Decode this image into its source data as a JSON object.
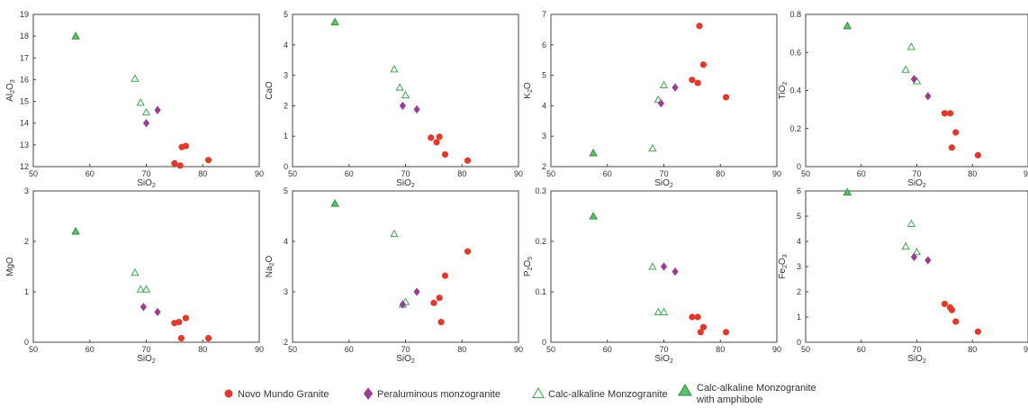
{
  "legend": {
    "items": [
      {
        "key": "nmg",
        "label": "Novo Mundo Granite",
        "label2": ""
      },
      {
        "key": "pmz",
        "label": "Peraluminous monzogranite",
        "label2": ""
      },
      {
        "key": "cam",
        "label": "Calc-alkaline Monzogranite",
        "label2": ""
      },
      {
        "key": "cama",
        "label": "Calc-alkaline Monzogranite",
        "label2": "with amphibole"
      }
    ]
  },
  "colors": {
    "nmg": "#e03a2c",
    "pmz": "#9b3c93",
    "cam_stroke": "#3fa84e",
    "cama_fill": "#5cc16a",
    "cama_stroke": "#2e8a3c",
    "axis": "#444444"
  },
  "chart_data": [
    {
      "type": "scatter",
      "xlabel": "SiO",
      "xsub": "2",
      "ylabel": "Al",
      "ysub": "2",
      "ylabel2": "O",
      "ysub2": "3",
      "xlim": [
        50,
        90
      ],
      "ylim": [
        12,
        19
      ],
      "xticks": [
        50,
        60,
        70,
        80,
        90
      ],
      "yticks": [
        12,
        13,
        14,
        15,
        16,
        17,
        18,
        19
      ],
      "series": [
        {
          "group": "nmg",
          "x": [
            75,
            76,
            76.3,
            77,
            81
          ],
          "y": [
            12.15,
            12.05,
            12.9,
            12.95,
            12.3
          ]
        },
        {
          "group": "pmz",
          "x": [
            70,
            72
          ],
          "y": [
            14.0,
            14.6
          ]
        },
        {
          "group": "cam",
          "x": [
            68,
            69,
            70
          ],
          "y": [
            16.05,
            14.95,
            14.5
          ]
        },
        {
          "group": "cama",
          "x": [
            57.5
          ],
          "y": [
            18.0
          ]
        }
      ]
    },
    {
      "type": "scatter",
      "xlabel": "SiO",
      "xsub": "2",
      "ylabel": "CaO",
      "ysub": "",
      "ylabel2": "",
      "ysub2": "",
      "xlim": [
        50,
        90
      ],
      "ylim": [
        0,
        5
      ],
      "xticks": [
        50,
        60,
        70,
        80,
        90
      ],
      "yticks": [
        0,
        1,
        2,
        3,
        4,
        5
      ],
      "series": [
        {
          "group": "nmg",
          "x": [
            74.5,
            75.5,
            76,
            77,
            81
          ],
          "y": [
            0.95,
            0.8,
            0.98,
            0.4,
            0.2
          ]
        },
        {
          "group": "pmz",
          "x": [
            69.5,
            72
          ],
          "y": [
            2.0,
            1.88
          ]
        },
        {
          "group": "cam",
          "x": [
            68,
            69,
            70
          ],
          "y": [
            3.2,
            2.6,
            2.35
          ]
        },
        {
          "group": "cama",
          "x": [
            57.5
          ],
          "y": [
            4.75
          ]
        }
      ]
    },
    {
      "type": "scatter",
      "xlabel": "SiO",
      "xsub": "2",
      "ylabel": "K",
      "ysub": "2",
      "ylabel2": "O",
      "ysub2": "",
      "xlim": [
        50,
        90
      ],
      "ylim": [
        2,
        7
      ],
      "xticks": [
        50,
        60,
        70,
        80,
        90
      ],
      "yticks": [
        2,
        3,
        4,
        5,
        6,
        7
      ],
      "series": [
        {
          "group": "nmg",
          "x": [
            75,
            76,
            76.3,
            77,
            81
          ],
          "y": [
            4.85,
            4.75,
            6.62,
            5.35,
            4.28
          ]
        },
        {
          "group": "pmz",
          "x": [
            69.5,
            72
          ],
          "y": [
            4.08,
            4.6
          ]
        },
        {
          "group": "cam",
          "x": [
            68,
            69,
            70
          ],
          "y": [
            2.6,
            4.2,
            4.68
          ]
        },
        {
          "group": "cama",
          "x": [
            57.5
          ],
          "y": [
            2.45
          ]
        }
      ]
    },
    {
      "type": "scatter",
      "xlabel": "SiO",
      "xsub": "2",
      "ylabel": "TiO",
      "ysub": "2",
      "ylabel2": "",
      "ysub2": "",
      "xlim": [
        50,
        90
      ],
      "ylim": [
        0,
        0.8
      ],
      "xticks": [
        50,
        60,
        70,
        80,
        90
      ],
      "yticks": [
        0,
        0.2,
        0.4,
        0.6,
        0.8
      ],
      "series": [
        {
          "group": "nmg",
          "x": [
            75,
            76,
            76.3,
            77,
            81
          ],
          "y": [
            0.28,
            0.28,
            0.1,
            0.18,
            0.06
          ]
        },
        {
          "group": "pmz",
          "x": [
            69.5,
            72
          ],
          "y": [
            0.46,
            0.37
          ]
        },
        {
          "group": "cam",
          "x": [
            68,
            69,
            70
          ],
          "y": [
            0.51,
            0.63,
            0.45
          ]
        },
        {
          "group": "cama",
          "x": [
            57.5
          ],
          "y": [
            0.74
          ]
        }
      ]
    },
    {
      "type": "scatter",
      "xlabel": "SiO",
      "xsub": "2",
      "ylabel": "MgO",
      "ysub": "",
      "ylabel2": "",
      "ysub2": "",
      "xlim": [
        50,
        90
      ],
      "ylim": [
        0,
        3
      ],
      "xticks": [
        50,
        60,
        70,
        80,
        90
      ],
      "yticks": [
        0,
        1,
        2,
        3
      ],
      "series": [
        {
          "group": "nmg",
          "x": [
            75,
            75.8,
            76.2,
            77,
            81
          ],
          "y": [
            0.38,
            0.4,
            0.08,
            0.48,
            0.08
          ]
        },
        {
          "group": "pmz",
          "x": [
            69.5,
            72
          ],
          "y": [
            0.7,
            0.6
          ]
        },
        {
          "group": "cam",
          "x": [
            68,
            69,
            70
          ],
          "y": [
            1.38,
            1.05,
            1.05
          ]
        },
        {
          "group": "cama",
          "x": [
            57.5
          ],
          "y": [
            2.2
          ]
        }
      ]
    },
    {
      "type": "scatter",
      "xlabel": "SiO",
      "xsub": "2",
      "ylabel": "Na",
      "ysub": "2",
      "ylabel2": "O",
      "ysub2": "",
      "xlim": [
        50,
        90
      ],
      "ylim": [
        2,
        5
      ],
      "xticks": [
        50,
        60,
        70,
        80,
        90
      ],
      "yticks": [
        2,
        3,
        4,
        5
      ],
      "series": [
        {
          "group": "nmg",
          "x": [
            75,
            76,
            76.3,
            77,
            81
          ],
          "y": [
            2.78,
            2.88,
            2.4,
            3.32,
            3.8
          ]
        },
        {
          "group": "pmz",
          "x": [
            69.5,
            72
          ],
          "y": [
            2.75,
            3.0
          ]
        },
        {
          "group": "cam",
          "x": [
            68,
            69.5,
            70
          ],
          "y": [
            4.15,
            2.75,
            2.8
          ]
        },
        {
          "group": "cama",
          "x": [
            57.5
          ],
          "y": [
            4.75
          ]
        }
      ]
    },
    {
      "type": "scatter",
      "xlabel": "SiO",
      "xsub": "2",
      "ylabel": "P",
      "ysub": "2",
      "ylabel2": "O",
      "ysub2": "5",
      "xlim": [
        50,
        90
      ],
      "ylim": [
        0,
        0.3
      ],
      "xticks": [
        50,
        60,
        70,
        80,
        90
      ],
      "yticks": [
        0,
        0.1,
        0.2,
        0.3
      ],
      "series": [
        {
          "group": "nmg",
          "x": [
            75,
            76,
            76.5,
            77,
            81
          ],
          "y": [
            0.05,
            0.05,
            0.02,
            0.03,
            0.02
          ]
        },
        {
          "group": "pmz",
          "x": [
            70,
            72
          ],
          "y": [
            0.15,
            0.14
          ]
        },
        {
          "group": "cam",
          "x": [
            68,
            69,
            70
          ],
          "y": [
            0.15,
            0.06,
            0.06
          ]
        },
        {
          "group": "cama",
          "x": [
            57.5
          ],
          "y": [
            0.25
          ]
        }
      ]
    },
    {
      "type": "scatter",
      "xlabel": "SiO",
      "xsub": "2",
      "ylabel": "Fe",
      "ysub": "2",
      "ylabel2": "O",
      "ysub2": "3",
      "xlim": [
        50,
        90
      ],
      "ylim": [
        0,
        6
      ],
      "xticks": [
        50,
        60,
        70,
        80,
        90
      ],
      "yticks": [
        0,
        1,
        2,
        3,
        4,
        5,
        6
      ],
      "series": [
        {
          "group": "nmg",
          "x": [
            75,
            76,
            76.3,
            77,
            81
          ],
          "y": [
            1.52,
            1.38,
            1.28,
            0.82,
            0.42
          ]
        },
        {
          "group": "pmz",
          "x": [
            69.5,
            72
          ],
          "y": [
            3.38,
            3.25
          ]
        },
        {
          "group": "cam",
          "x": [
            68,
            69,
            70
          ],
          "y": [
            3.8,
            4.7,
            3.58
          ]
        },
        {
          "group": "cama",
          "x": [
            57.5
          ],
          "y": [
            5.95
          ]
        }
      ]
    }
  ]
}
